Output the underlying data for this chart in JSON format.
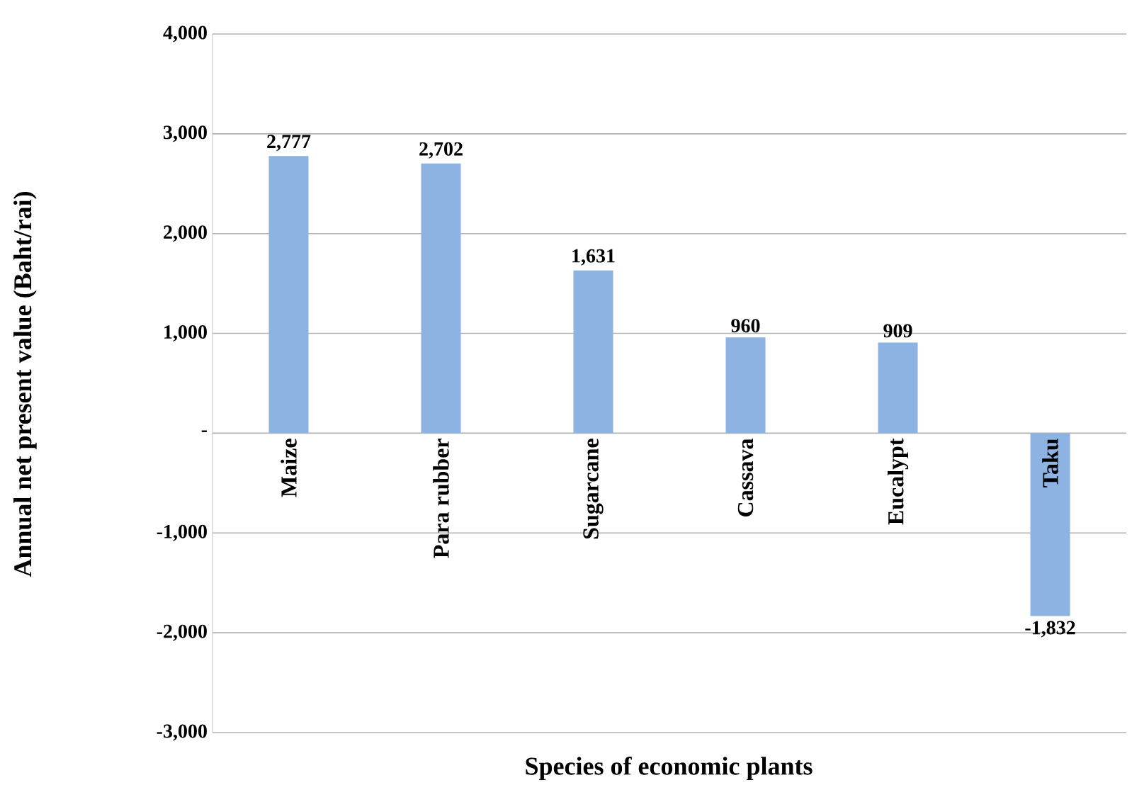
{
  "chart_data": {
    "type": "bar",
    "xlabel": "Species of economic plants",
    "ylabel": "Annual net present value (Baht/rai)",
    "categories": [
      "Maize",
      "Para rubber",
      "Sugarcane",
      "Cassava",
      "Eucalypt",
      "Taku"
    ],
    "values": [
      2777,
      2702,
      1631,
      960,
      909,
      -1832
    ],
    "value_labels": [
      "2,777",
      "2,702",
      "1,631",
      "960",
      "909",
      "-1,832"
    ],
    "color": "#8db3e2",
    "ylim": [
      -3000,
      4000
    ],
    "yticks": [
      {
        "value": -3000,
        "label": "-3,000"
      },
      {
        "value": -2000,
        "label": "-2,000"
      },
      {
        "value": -1000,
        "label": "-1,000"
      },
      {
        "value": 0,
        "label": "-"
      },
      {
        "value": 1000,
        "label": "1,000"
      },
      {
        "value": 2000,
        "label": "2,000"
      },
      {
        "value": 3000,
        "label": "3,000"
      },
      {
        "value": 4000,
        "label": "4,000"
      }
    ],
    "grid": "y"
  }
}
